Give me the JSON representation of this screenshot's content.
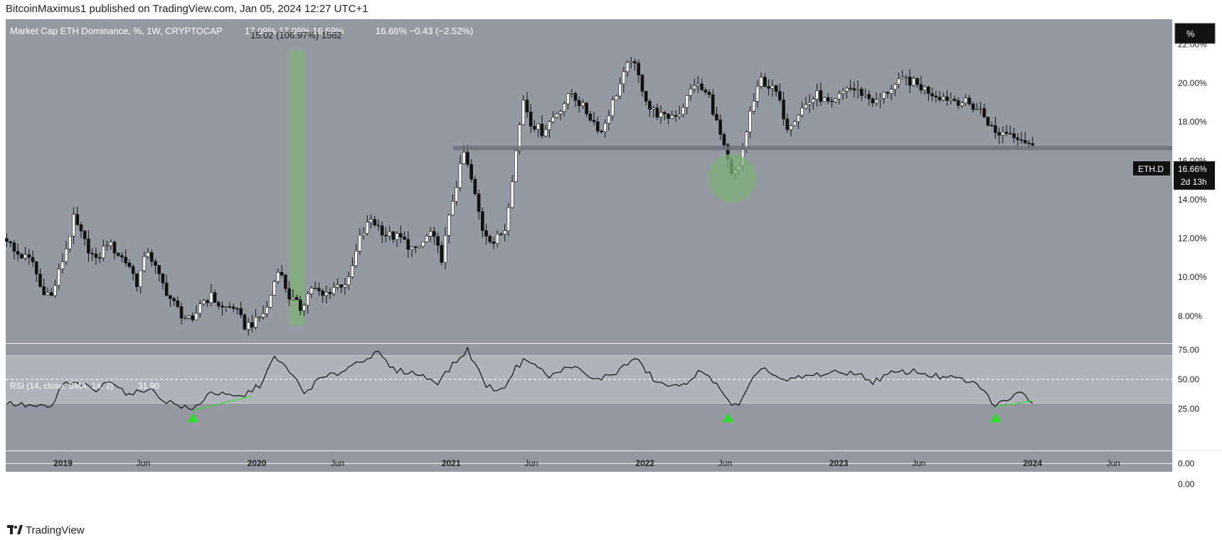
{
  "header": {
    "published": "BitcoinMaximus1 published on TradingView.com, Jan 05, 2024 12:27 UTC+1"
  },
  "footer": {
    "brand": "TradingView"
  },
  "colors": {
    "pane_bg": "#9598a1",
    "price_bg": "#9599a2",
    "candle_up": "#ffffff",
    "candle_down": "#111111",
    "rsi_line": "#111111",
    "rsi_band": "#b0b3ba",
    "highlight_green": "#7fb07a",
    "divergence_green": "#2fdd2f",
    "support_line": "#6e7179"
  },
  "price_pane": {
    "title": "Market Cap ETH Dominance, %, 1W, CRYPTOCAP",
    "ohlc_overlap": "17.09%   17.09%   16.59%",
    "ohlc_overlap_2": "15.02 (106.97%) 1562",
    "change": "16.66%  −0.43 (−2.52%)",
    "scale_button": "%",
    "ticker_label": "ETH.D",
    "last_value_label": "16.66%",
    "countdown": "2d 13h"
  },
  "rsi_pane": {
    "title": "RSI (14, close, SMA, 14, 2)",
    "value": "31.90"
  },
  "chart_data": [
    {
      "type": "candlestick",
      "title": "Market Cap ETH Dominance, %, 1W, CRYPTOCAP",
      "ylim": [
        6.6,
        23.3
      ],
      "y_ticks": [
        "22.00%",
        "20.00%",
        "18.00%",
        "16.00%",
        "14.00%",
        "12.00%",
        "10.00%",
        "8.00%"
      ],
      "y_tick_values": [
        22,
        20,
        18,
        16,
        14,
        12,
        10,
        8
      ],
      "x_tick_labels": [
        "2019",
        "Jun",
        "2020",
        "Jun",
        "2021",
        "Jun",
        "2022",
        "Jun",
        "2023",
        "Jun",
        "2024",
        "Jun"
      ],
      "x_tick_dates": [
        "2019-01-01",
        "2019-06-01",
        "2020-01-01",
        "2020-06-01",
        "2021-01-01",
        "2021-06-01",
        "2022-01-01",
        "2022-06-01",
        "2023-01-01",
        "2023-06-01",
        "2024-01-01",
        "2024-06-01"
      ],
      "date_range": [
        "2018-09-15",
        "2024-09-20"
      ],
      "candles": [],
      "anchors": [
        [
          "2018-09-17",
          12.0
        ],
        [
          "2018-10-01",
          11.3
        ],
        [
          "2018-11-05",
          10.8
        ],
        [
          "2018-11-19",
          9.5
        ],
        [
          "2018-12-10",
          9.0
        ],
        [
          "2019-01-07",
          11.5
        ],
        [
          "2019-01-21",
          13.0
        ],
        [
          "2019-02-11",
          11.8
        ],
        [
          "2019-03-04",
          10.8
        ],
        [
          "2019-03-25",
          11.8
        ],
        [
          "2019-05-06",
          10.6
        ],
        [
          "2019-05-20",
          9.7
        ],
        [
          "2019-06-10",
          11.4
        ],
        [
          "2019-07-01",
          10.0
        ],
        [
          "2019-07-22",
          8.9
        ],
        [
          "2019-08-12",
          8.1
        ],
        [
          "2019-09-02",
          7.6
        ],
        [
          "2019-09-16",
          8.7
        ],
        [
          "2019-10-07",
          9.0
        ],
        [
          "2019-10-28",
          8.4
        ],
        [
          "2019-11-18",
          8.5
        ],
        [
          "2019-12-09",
          7.5
        ],
        [
          "2019-12-30",
          7.7
        ],
        [
          "2020-01-20",
          8.4
        ],
        [
          "2020-02-10",
          10.5
        ],
        [
          "2020-03-02",
          9.0
        ],
        [
          "2020-03-23",
          8.4
        ],
        [
          "2020-04-13",
          9.5
        ],
        [
          "2020-05-04",
          9.0
        ],
        [
          "2020-05-25",
          9.5
        ],
        [
          "2020-06-22",
          9.8
        ],
        [
          "2020-07-13",
          12.0
        ],
        [
          "2020-08-03",
          13.0
        ],
        [
          "2020-08-31",
          12.2
        ],
        [
          "2020-09-28",
          12.0
        ],
        [
          "2020-10-26",
          11.3
        ],
        [
          "2020-11-23",
          12.3
        ],
        [
          "2020-12-14",
          11.0
        ],
        [
          "2021-01-04",
          14.0
        ],
        [
          "2021-01-25",
          16.4
        ],
        [
          "2021-02-08",
          15.0
        ],
        [
          "2021-03-01",
          12.5
        ],
        [
          "2021-03-22",
          11.8
        ],
        [
          "2021-04-12",
          12.5
        ],
        [
          "2021-05-03",
          16.5
        ],
        [
          "2021-05-17",
          19.2
        ],
        [
          "2021-05-31",
          18.0
        ],
        [
          "2021-06-21",
          17.5
        ],
        [
          "2021-07-19",
          18.5
        ],
        [
          "2021-08-16",
          19.5
        ],
        [
          "2021-09-13",
          18.5
        ],
        [
          "2021-10-11",
          17.5
        ],
        [
          "2021-11-08",
          19.5
        ],
        [
          "2021-12-06",
          21.3
        ],
        [
          "2021-12-20",
          20.3
        ],
        [
          "2022-01-10",
          18.7
        ],
        [
          "2022-02-07",
          18.2
        ],
        [
          "2022-03-07",
          18.5
        ],
        [
          "2022-04-04",
          20.0
        ],
        [
          "2022-05-02",
          19.3
        ],
        [
          "2022-05-23",
          17.3
        ],
        [
          "2022-06-13",
          15.2
        ],
        [
          "2022-06-27",
          15.6
        ],
        [
          "2022-07-18",
          18.5
        ],
        [
          "2022-08-08",
          20.2
        ],
        [
          "2022-09-05",
          19.5
        ],
        [
          "2022-09-26",
          17.8
        ],
        [
          "2022-10-24",
          18.7
        ],
        [
          "2022-11-21",
          19.4
        ],
        [
          "2022-12-19",
          18.8
        ],
        [
          "2023-01-16",
          19.8
        ],
        [
          "2023-02-13",
          19.5
        ],
        [
          "2023-03-13",
          19.0
        ],
        [
          "2023-04-10",
          19.8
        ],
        [
          "2023-05-08",
          20.2
        ],
        [
          "2023-06-05",
          19.8
        ],
        [
          "2023-07-03",
          19.4
        ],
        [
          "2023-07-31",
          19.2
        ],
        [
          "2023-08-28",
          19.0
        ],
        [
          "2023-09-25",
          18.6
        ],
        [
          "2023-10-23",
          17.4
        ],
        [
          "2023-11-13",
          17.5
        ],
        [
          "2023-12-04",
          17.3
        ],
        [
          "2023-12-25",
          16.9
        ],
        [
          "2024-01-01",
          16.66
        ]
      ],
      "horizontal_line": {
        "value": 16.66,
        "label": "ETH.D 16.66%"
      },
      "highlight_band": {
        "from": "2020-03-02",
        "to": "2020-03-30"
      },
      "highlight_circle": {
        "date": "2022-06-13",
        "value": 15.1
      }
    },
    {
      "type": "line",
      "title": "RSI (14, close, SMA, 14, 2)",
      "ylim": [
        -10,
        80
      ],
      "y_ticks": [
        "75.00",
        "50.00",
        "25.00",
        "0.00",
        "0.00"
      ],
      "band": [
        30,
        70
      ],
      "mid": 50,
      "last": 31.9,
      "anchors": [
        [
          "2018-09-17",
          30
        ],
        [
          "2018-11-12",
          27
        ],
        [
          "2018-12-10",
          26
        ],
        [
          "2018-12-31",
          46
        ],
        [
          "2019-02-04",
          46
        ],
        [
          "2019-03-04",
          40
        ],
        [
          "2019-04-01",
          50
        ],
        [
          "2019-05-06",
          36
        ],
        [
          "2019-06-10",
          43
        ],
        [
          "2019-07-08",
          33
        ],
        [
          "2019-08-19",
          26
        ],
        [
          "2019-09-02",
          24
        ],
        [
          "2019-10-07",
          40
        ],
        [
          "2019-11-04",
          36
        ],
        [
          "2019-12-02",
          35
        ],
        [
          "2020-01-06",
          45
        ],
        [
          "2020-02-03",
          68
        ],
        [
          "2020-03-02",
          58
        ],
        [
          "2020-03-30",
          38
        ],
        [
          "2020-04-27",
          50
        ],
        [
          "2020-06-01",
          55
        ],
        [
          "2020-07-13",
          66
        ],
        [
          "2020-08-17",
          72
        ],
        [
          "2020-09-14",
          58
        ],
        [
          "2020-10-19",
          56
        ],
        [
          "2020-12-07",
          48
        ],
        [
          "2021-01-04",
          62
        ],
        [
          "2021-02-01",
          75
        ],
        [
          "2021-03-08",
          45
        ],
        [
          "2021-04-05",
          40
        ],
        [
          "2021-05-03",
          60
        ],
        [
          "2021-05-24",
          68
        ],
        [
          "2021-07-05",
          52
        ],
        [
          "2021-08-16",
          62
        ],
        [
          "2021-09-27",
          49
        ],
        [
          "2021-11-08",
          56
        ],
        [
          "2021-12-13",
          68
        ],
        [
          "2022-01-24",
          47
        ],
        [
          "2022-03-07",
          43
        ],
        [
          "2022-04-11",
          56
        ],
        [
          "2022-05-16",
          48
        ],
        [
          "2022-06-06",
          31
        ],
        [
          "2022-06-27",
          27
        ],
        [
          "2022-07-18",
          45
        ],
        [
          "2022-08-08",
          61
        ],
        [
          "2022-09-19",
          48
        ],
        [
          "2022-10-24",
          52
        ],
        [
          "2022-12-05",
          55
        ],
        [
          "2023-01-30",
          56
        ],
        [
          "2023-03-06",
          48
        ],
        [
          "2023-04-10",
          55
        ],
        [
          "2023-05-22",
          57
        ],
        [
          "2023-07-10",
          52
        ],
        [
          "2023-08-21",
          50
        ],
        [
          "2023-09-25",
          44
        ],
        [
          "2023-10-23",
          27
        ],
        [
          "2023-11-13",
          33
        ],
        [
          "2023-12-04",
          40
        ],
        [
          "2024-01-01",
          32
        ]
      ],
      "markers": [
        {
          "date": "2019-09-02",
          "value": 24
        },
        {
          "date": "2022-06-06",
          "value": 24
        },
        {
          "date": "2023-10-23",
          "value": 24
        }
      ],
      "divergences": [
        {
          "from": [
            "2019-09-02",
            24
          ],
          "to": [
            "2019-12-23",
            36
          ]
        },
        {
          "from": [
            "2023-10-23",
            27
          ],
          "to": [
            "2024-01-01",
            32
          ]
        }
      ]
    }
  ]
}
